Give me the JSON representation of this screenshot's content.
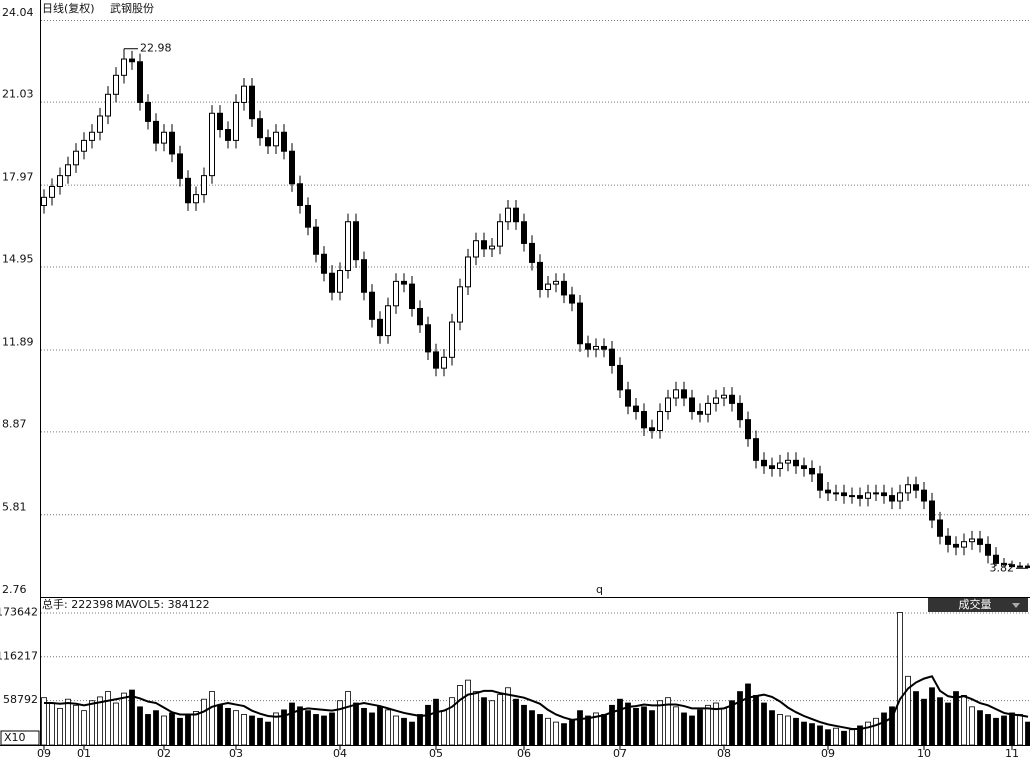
{
  "header": {
    "title": "日线(复权)",
    "stock": "武钢股份",
    "note": "q"
  },
  "chart_data": [
    {
      "type": "candlestick",
      "categories": [
        "09",
        null,
        null,
        null,
        null,
        "01",
        null,
        null,
        null,
        null,
        null,
        null,
        null,
        null,
        null,
        "02",
        null,
        null,
        null,
        null,
        null,
        null,
        null,
        null,
        "03",
        null,
        null,
        null,
        null,
        null,
        null,
        null,
        null,
        null,
        null,
        null,
        null,
        "04",
        null,
        null,
        null,
        null,
        null,
        null,
        null,
        null,
        null,
        null,
        null,
        "05",
        null,
        null,
        null,
        null,
        null,
        null,
        null,
        null,
        null,
        null,
        "06",
        null,
        null,
        null,
        null,
        null,
        null,
        null,
        null,
        null,
        null,
        null,
        "07",
        null,
        null,
        null,
        null,
        null,
        null,
        null,
        null,
        null,
        null,
        null,
        null,
        "08",
        null,
        null,
        null,
        null,
        null,
        null,
        null,
        null,
        null,
        null,
        null,
        null,
        "09",
        null,
        null,
        null,
        null,
        null,
        null,
        null,
        null,
        null,
        null,
        null,
        "10",
        null,
        null,
        null,
        null,
        null,
        null,
        null,
        null,
        null,
        null,
        "11",
        null,
        null
      ],
      "open": [
        17.2,
        17.5,
        17.9,
        18.3,
        18.7,
        19.2,
        19.6,
        19.9,
        20.5,
        21.3,
        22.0,
        22.6,
        22.5,
        21.0,
        20.3,
        19.5,
        19.9,
        19.1,
        18.2,
        17.3,
        17.6,
        18.3,
        20.6,
        20.0,
        19.6,
        21.0,
        21.6,
        20.4,
        19.7,
        19.4,
        19.9,
        19.2,
        18.0,
        17.2,
        16.4,
        15.4,
        14.7,
        14.0,
        14.8,
        16.6,
        15.2,
        14.0,
        13.0,
        12.4,
        13.5,
        14.4,
        14.3,
        13.4,
        12.8,
        11.8,
        11.2,
        11.6,
        12.9,
        14.2,
        15.3,
        15.9,
        15.6,
        15.7,
        16.6,
        17.1,
        16.6,
        15.8,
        15.1,
        14.1,
        14.3,
        14.4,
        13.9,
        13.6,
        12.1,
        11.9,
        12.0,
        11.9,
        11.3,
        10.4,
        9.8,
        9.6,
        9.0,
        8.9,
        9.6,
        10.1,
        10.4,
        10.1,
        9.6,
        9.5,
        9.9,
        10.1,
        10.2,
        9.9,
        9.3,
        8.6,
        7.8,
        7.6,
        7.5,
        7.7,
        7.8,
        7.6,
        7.5,
        7.3,
        6.7,
        6.6,
        6.6,
        6.5,
        6.5,
        6.4,
        6.6,
        6.6,
        6.5,
        6.3,
        6.6,
        6.9,
        6.7,
        6.3,
        5.6,
        5.0,
        4.7,
        4.6,
        4.8,
        4.9,
        4.7,
        4.3,
        4.0,
        3.95,
        3.88,
        3.9
      ],
      "high": [
        17.8,
        18.2,
        18.6,
        19.0,
        19.5,
        19.9,
        20.2,
        20.8,
        21.6,
        22.3,
        22.98,
        22.9,
        22.8,
        21.3,
        20.6,
        20.2,
        20.2,
        19.4,
        18.5,
        17.9,
        18.6,
        20.9,
        20.9,
        20.3,
        21.3,
        21.9,
        21.9,
        20.7,
        20.0,
        20.2,
        20.2,
        19.5,
        18.3,
        17.5,
        16.7,
        15.7,
        15.0,
        15.1,
        16.9,
        16.9,
        15.5,
        14.3,
        13.3,
        13.8,
        14.7,
        14.7,
        14.6,
        13.7,
        13.1,
        12.1,
        11.9,
        13.2,
        14.5,
        15.6,
        16.2,
        16.2,
        16.0,
        16.9,
        17.4,
        17.4,
        16.9,
        16.1,
        15.4,
        14.6,
        14.7,
        14.7,
        14.2,
        13.9,
        12.4,
        12.3,
        12.3,
        12.2,
        11.6,
        10.7,
        10.1,
        9.9,
        9.3,
        9.9,
        10.4,
        10.7,
        10.7,
        10.4,
        9.9,
        10.2,
        10.4,
        10.5,
        10.5,
        10.2,
        9.6,
        8.9,
        8.1,
        7.9,
        8.0,
        8.1,
        8.1,
        7.9,
        7.8,
        7.6,
        7.0,
        6.9,
        6.9,
        6.8,
        6.8,
        6.9,
        6.9,
        6.9,
        6.8,
        6.9,
        7.2,
        7.2,
        7.0,
        6.6,
        5.9,
        5.3,
        5.0,
        5.1,
        5.2,
        5.2,
        5.0,
        4.6,
        4.2,
        4.1,
        4.05,
        4.0
      ],
      "low": [
        16.9,
        17.2,
        17.6,
        18.0,
        18.4,
        18.9,
        19.3,
        19.6,
        20.2,
        21.0,
        21.7,
        22.2,
        20.7,
        20.0,
        19.2,
        19.2,
        18.8,
        17.9,
        17.0,
        17.0,
        17.3,
        18.0,
        19.7,
        19.3,
        19.3,
        20.7,
        20.1,
        19.4,
        19.1,
        19.1,
        18.9,
        17.7,
        16.9,
        16.1,
        15.1,
        14.4,
        13.7,
        13.7,
        14.5,
        14.9,
        13.7,
        12.7,
        12.1,
        12.1,
        13.2,
        14.0,
        13.1,
        12.5,
        11.5,
        10.9,
        10.9,
        11.3,
        12.6,
        13.9,
        15.0,
        15.3,
        15.3,
        15.4,
        16.3,
        16.3,
        15.5,
        14.8,
        13.8,
        13.8,
        14.0,
        13.6,
        13.3,
        11.8,
        11.6,
        11.6,
        11.6,
        11.0,
        10.1,
        9.5,
        9.3,
        8.7,
        8.6,
        8.6,
        9.3,
        9.8,
        9.8,
        9.3,
        9.2,
        9.2,
        9.6,
        9.8,
        9.6,
        9.0,
        8.3,
        7.5,
        7.3,
        7.2,
        7.2,
        7.4,
        7.3,
        7.2,
        7.0,
        6.4,
        6.3,
        6.3,
        6.2,
        6.2,
        6.1,
        6.1,
        6.3,
        6.2,
        6.0,
        6.0,
        6.3,
        6.4,
        6.0,
        5.3,
        4.7,
        4.4,
        4.3,
        4.3,
        4.5,
        4.4,
        4.0,
        3.9,
        3.88,
        3.85,
        3.85,
        3.82
      ],
      "close": [
        17.5,
        17.9,
        18.3,
        18.7,
        19.2,
        19.6,
        19.9,
        20.5,
        21.3,
        22.0,
        22.6,
        22.5,
        21.0,
        20.3,
        19.5,
        19.9,
        19.1,
        18.2,
        17.3,
        17.6,
        18.3,
        20.6,
        20.0,
        19.6,
        21.0,
        21.6,
        20.4,
        19.7,
        19.4,
        19.9,
        19.2,
        18.0,
        17.2,
        16.4,
        15.4,
        14.7,
        14.0,
        14.8,
        16.6,
        15.2,
        14.0,
        13.0,
        12.4,
        13.5,
        14.4,
        14.3,
        13.4,
        12.8,
        11.8,
        11.2,
        11.6,
        12.9,
        14.2,
        15.3,
        15.9,
        15.6,
        15.7,
        16.6,
        17.1,
        16.6,
        15.8,
        15.1,
        14.1,
        14.3,
        14.4,
        13.9,
        13.6,
        12.1,
        11.9,
        12.0,
        11.9,
        11.3,
        10.4,
        9.8,
        9.6,
        9.0,
        8.9,
        9.6,
        10.1,
        10.4,
        10.1,
        9.6,
        9.5,
        9.9,
        10.1,
        10.2,
        9.9,
        9.3,
        8.6,
        7.8,
        7.6,
        7.5,
        7.7,
        7.8,
        7.6,
        7.5,
        7.3,
        6.7,
        6.6,
        6.6,
        6.5,
        6.5,
        6.4,
        6.6,
        6.6,
        6.5,
        6.3,
        6.6,
        6.9,
        6.7,
        6.3,
        5.6,
        5.0,
        4.7,
        4.6,
        4.8,
        4.9,
        4.7,
        4.3,
        4.0,
        3.95,
        3.88,
        3.9,
        3.85
      ],
      "ylim": [
        2.76,
        24.04
      ],
      "yticks": [
        2.76,
        5.81,
        8.87,
        11.89,
        14.95,
        17.97,
        21.03,
        24.04
      ],
      "grid": true
    },
    {
      "type": "bar",
      "title": "总手: 222398",
      "subtitle": "MAVOL5: 384122",
      "button": "成交量",
      "unit": "X10",
      "values": [
        62000,
        55000,
        48000,
        60000,
        52000,
        45000,
        58000,
        63000,
        70000,
        55000,
        68000,
        72000,
        50000,
        40000,
        45000,
        38000,
        42000,
        35000,
        40000,
        44000,
        60000,
        70000,
        52000,
        48000,
        45000,
        40000,
        38000,
        35000,
        30000,
        42000,
        46000,
        55000,
        50000,
        45000,
        40000,
        38000,
        42000,
        58000,
        70000,
        55000,
        48000,
        42000,
        50000,
        46000,
        38000,
        35000,
        30000,
        40000,
        52000,
        60000,
        45000,
        62000,
        78000,
        85000,
        70000,
        62000,
        58000,
        66000,
        75000,
        60000,
        52000,
        45000,
        40000,
        35000,
        30000,
        28000,
        32000,
        45000,
        38000,
        42000,
        40000,
        52000,
        60000,
        55000,
        48000,
        50000,
        45000,
        58000,
        62000,
        50000,
        42000,
        38000,
        46000,
        52000,
        55000,
        48000,
        58000,
        70000,
        80000,
        65000,
        55000,
        45000,
        40000,
        38000,
        35000,
        30000,
        28000,
        25000,
        20000,
        22000,
        18000,
        20000,
        25000,
        30000,
        35000,
        42000,
        50000,
        173642,
        90000,
        70000,
        60000,
        75000,
        62000,
        55000,
        70000,
        65000,
        50000,
        45000,
        40000,
        35000,
        38000,
        42000,
        40000,
        30000
      ],
      "ma_values": [
        55000,
        55000,
        54000,
        55000,
        54000,
        52000,
        54000,
        56000,
        58000,
        60000,
        62000,
        64000,
        61000,
        57000,
        55000,
        49000,
        43000,
        40000,
        40000,
        40000,
        44000,
        50000,
        53000,
        55000,
        53000,
        51000,
        45000,
        41000,
        38000,
        37000,
        38000,
        42000,
        46000,
        48000,
        47000,
        46000,
        45000,
        47000,
        50000,
        53000,
        55000,
        53000,
        51000,
        48000,
        45000,
        42000,
        40000,
        38000,
        39000,
        43000,
        45000,
        50000,
        59000,
        66000,
        68000,
        71000,
        71000,
        68000,
        66000,
        64000,
        62000,
        58000,
        54000,
        46000,
        40000,
        36000,
        33000,
        34000,
        35000,
        37000,
        39000,
        43000,
        46000,
        50000,
        51000,
        53000,
        52000,
        52000,
        53000,
        53000,
        51000,
        48000,
        48000,
        48000,
        47000,
        48000,
        52000,
        57000,
        62000,
        64000,
        66000,
        63000,
        57000,
        49000,
        43000,
        38000,
        34000,
        30000,
        27000,
        25000,
        23000,
        21000,
        21000,
        23000,
        26000,
        30000,
        36000,
        60000,
        74000,
        82000,
        87000,
        90000,
        71000,
        64000,
        62000,
        64000,
        60000,
        55000,
        52000,
        47000,
        42000,
        40000,
        39000,
        37000
      ],
      "ylim": [
        0,
        190000
      ],
      "yticks": [
        58792,
        116217,
        173642
      ],
      "grid": true
    }
  ]
}
